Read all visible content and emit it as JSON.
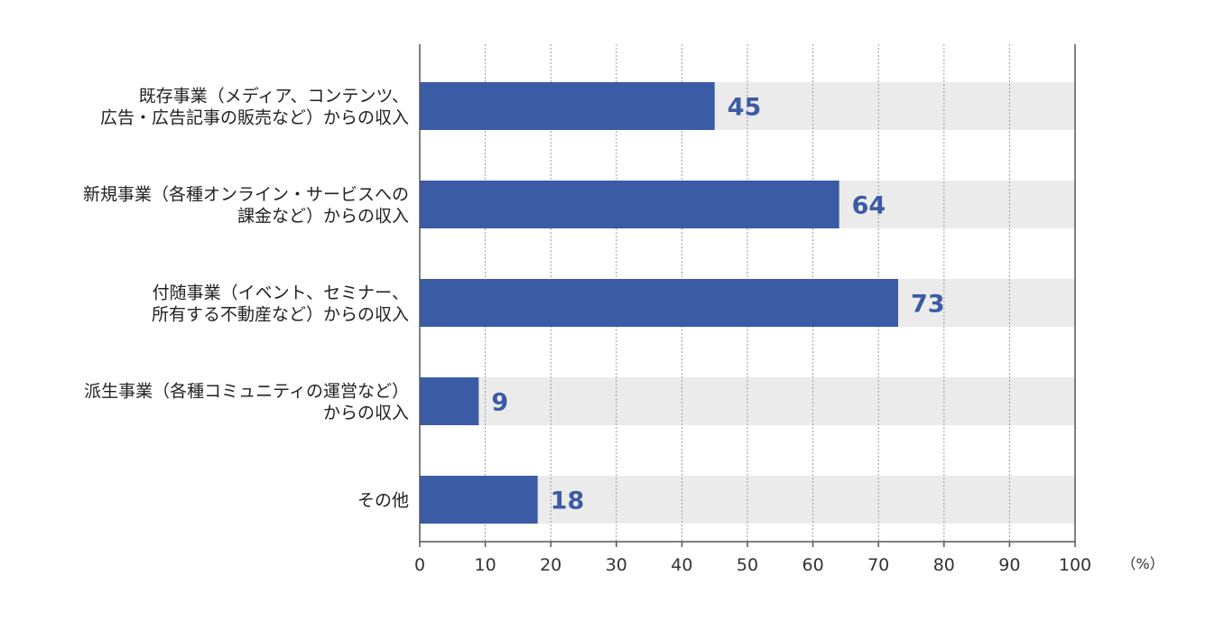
{
  "chart_data": {
    "type": "bar",
    "orientation": "horizontal",
    "categories": [
      [
        "既存事業（メディア、コンテンツ、",
        "広告・広告記事の販売など）からの収入"
      ],
      [
        "新規事業（各種オンライン・サービスへの",
        "課金など）からの収入"
      ],
      [
        "付随事業（イベント、セミナー、",
        "所有する不動産など）からの収入"
      ],
      [
        "派生事業（各種コミュニティの運営など）",
        "からの収入"
      ],
      [
        "その他"
      ]
    ],
    "values": [
      45,
      64,
      73,
      9,
      18
    ],
    "xlim": [
      0,
      100
    ],
    "x_ticks": [
      "0",
      "10",
      "20",
      "30",
      "40",
      "50",
      "60",
      "70",
      "80",
      "90",
      "100"
    ],
    "unit_label": "（%）",
    "grid": true,
    "colors": {
      "bar": "#3b5ba5",
      "track": "#ebebeb",
      "value_label": "#3b5ba5",
      "category_label": "#222222",
      "axis": "#555555",
      "grid": "#999999"
    }
  }
}
